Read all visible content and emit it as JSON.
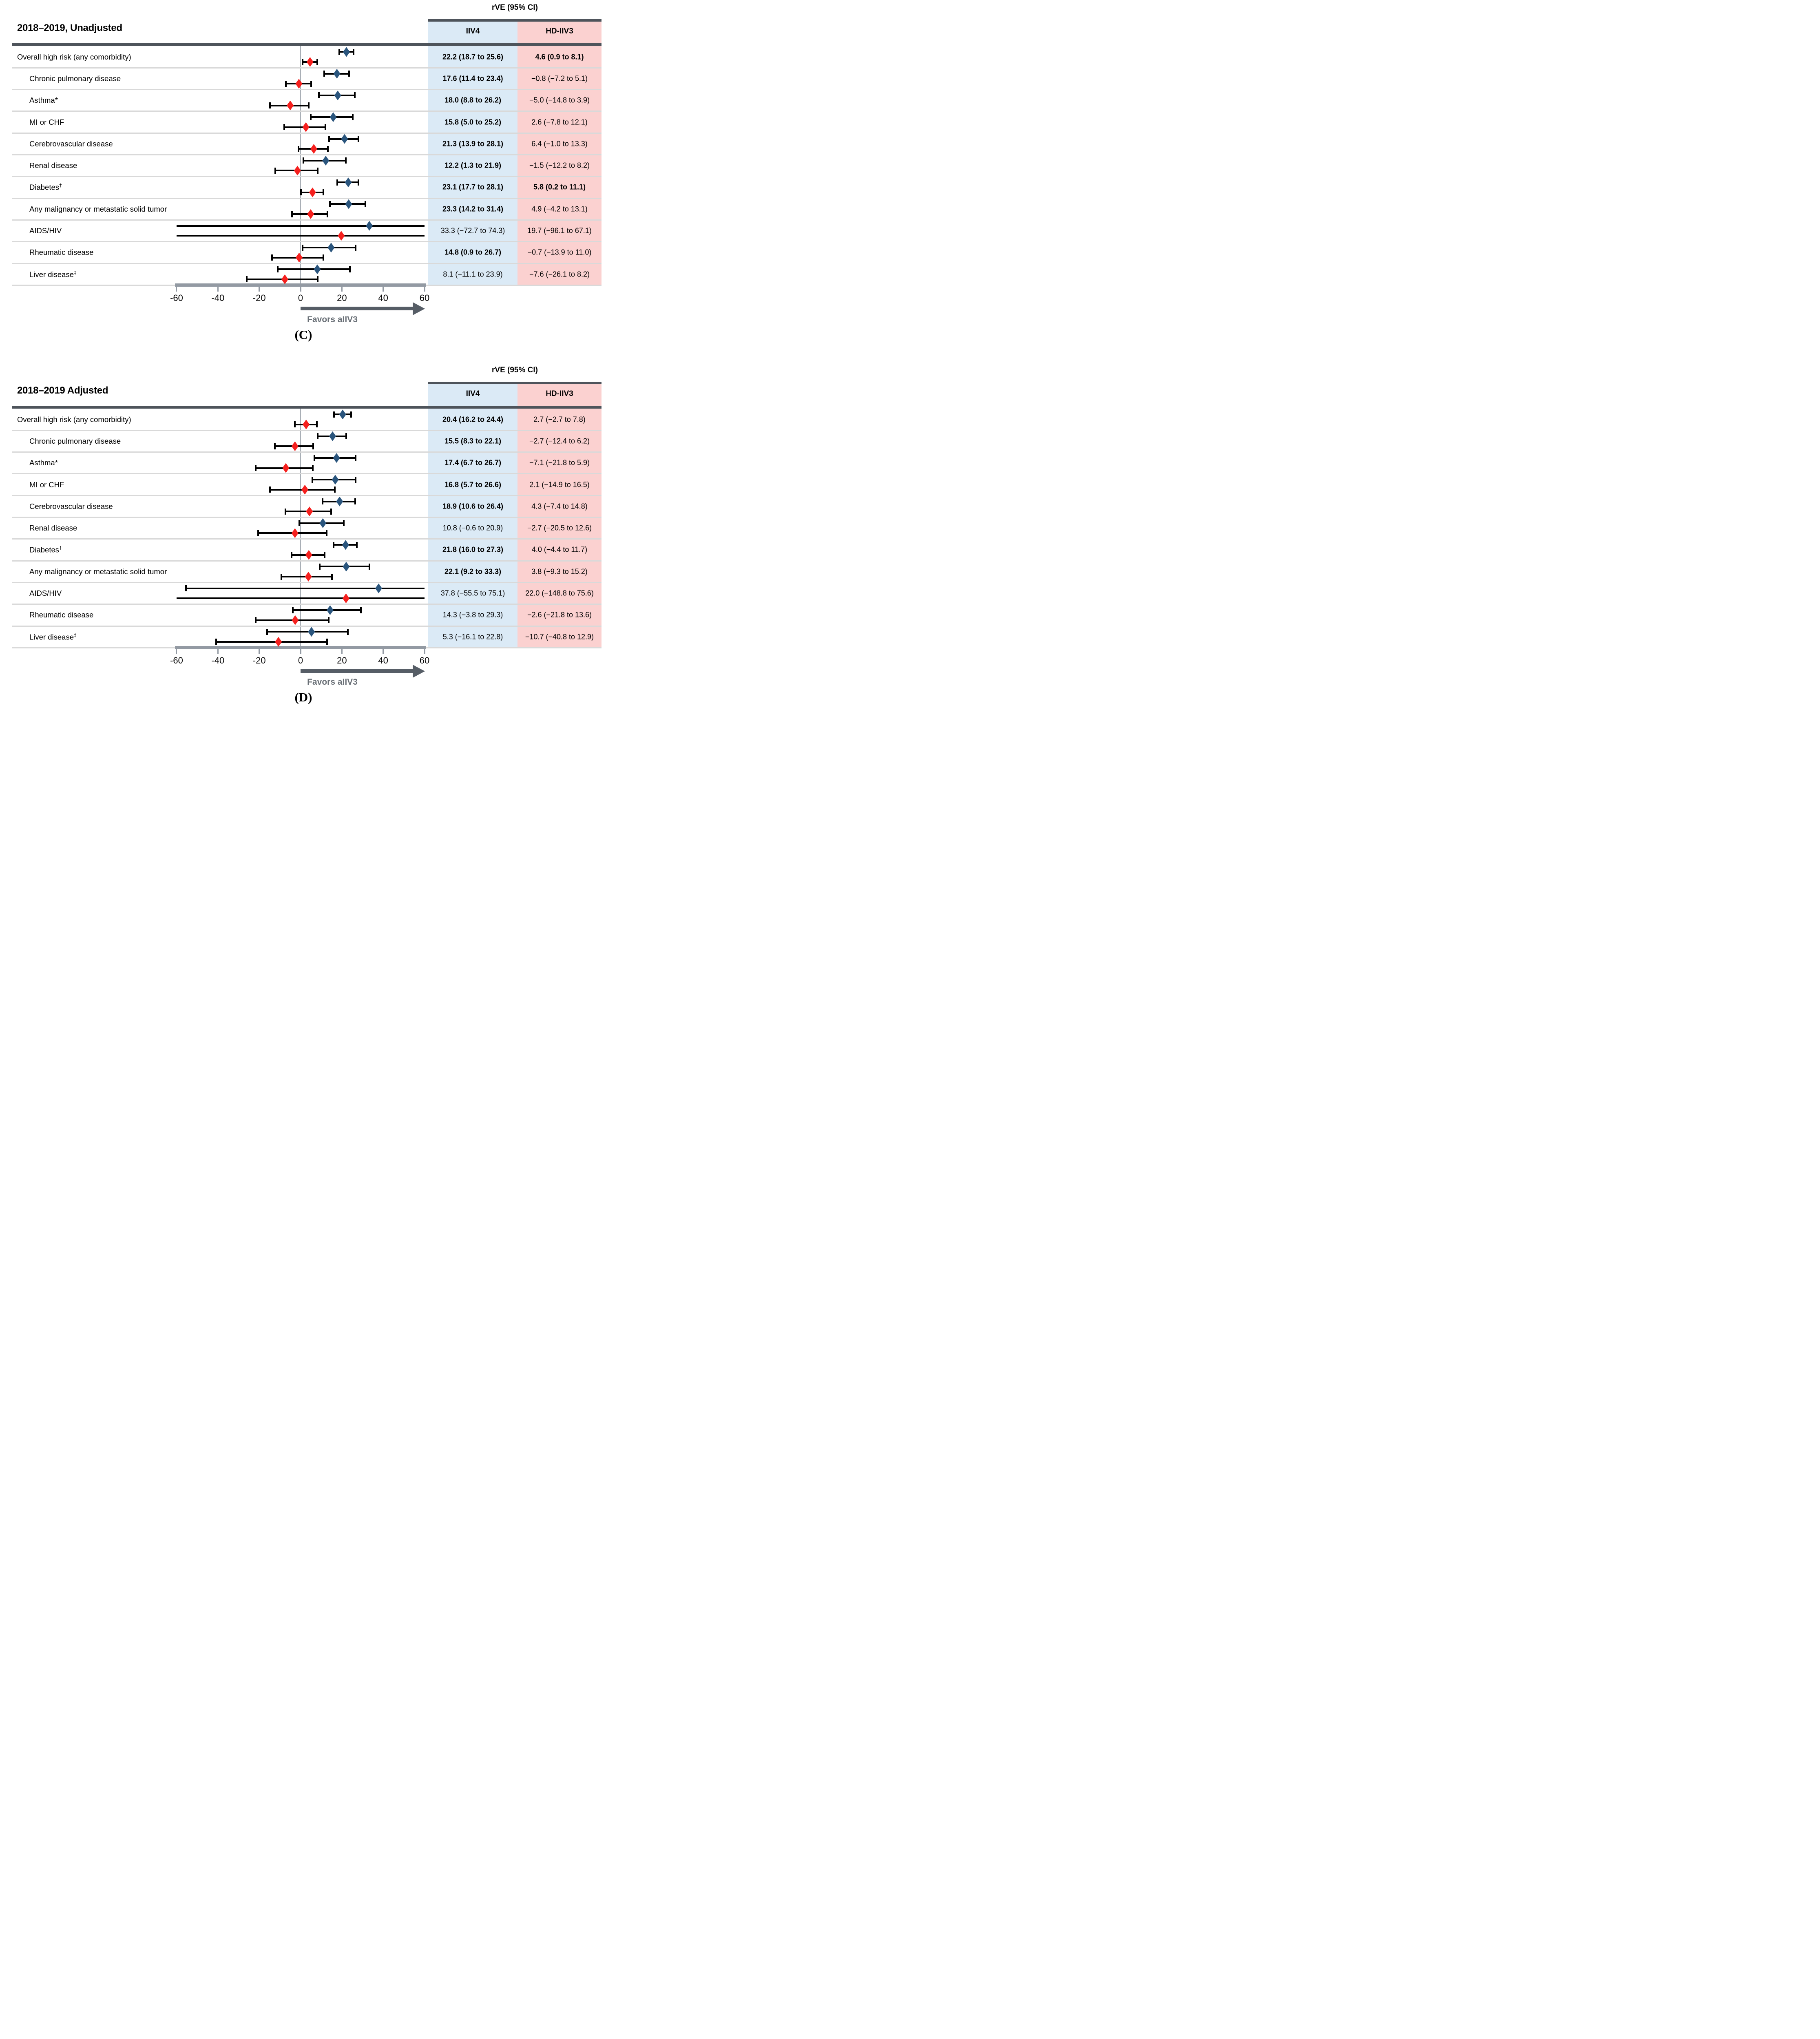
{
  "figure": {
    "header_label": "rVE (95% CI)",
    "col_iiv4": "IIV4",
    "col_hd": "HD-IIV3",
    "favors_label": "Favors aIIV3",
    "axis": {
      "min": -60,
      "max": 60,
      "tick_labels": [
        "-60",
        "-40",
        "-20",
        "0",
        "20",
        "40",
        "60"
      ],
      "tick_values": [
        -60,
        -40,
        -20,
        0,
        20,
        40,
        60
      ]
    },
    "colors": {
      "iiv4_column_bg": "#DBEAF6",
      "hd_column_bg": "#FBD1D0",
      "iiv4_marker": "#2A557D",
      "hd_marker": "#F5201E",
      "header_bar": "#4E545B",
      "axis_bar": "#939AA3",
      "arrow": "#565D66",
      "favors_text": "#6A7077",
      "separator": "#D9D9D9",
      "zero_line": "#A9AFB6",
      "ci_line": "#000000"
    }
  },
  "chart_data": [
    {
      "type": "forest",
      "title": "2018–2019, Unadjusted",
      "caption": "(C)",
      "xlim": [
        -60,
        60
      ],
      "x_ticks": [
        -60,
        -40,
        -20,
        0,
        20,
        40,
        60
      ],
      "series_names": [
        "IIV4",
        "HD-IIV3"
      ],
      "rows": [
        {
          "label": "Overall high risk (any comorbidity)",
          "sup": "",
          "indent": false,
          "iiv4": {
            "est": 22.2,
            "lo": 18.7,
            "hi": 25.6,
            "text": "22.2 (18.7 to 25.6)",
            "bold": true
          },
          "hd": {
            "est": 4.6,
            "lo": 0.9,
            "hi": 8.1,
            "text": "4.6 (0.9 to 8.1)",
            "bold": true
          }
        },
        {
          "label": "Chronic pulmonary disease",
          "sup": "",
          "indent": true,
          "iiv4": {
            "est": 17.6,
            "lo": 11.4,
            "hi": 23.4,
            "text": "17.6 (11.4 to 23.4)",
            "bold": true
          },
          "hd": {
            "est": -0.8,
            "lo": -7.2,
            "hi": 5.1,
            "text": "−0.8 (−7.2 to 5.1)",
            "bold": false
          }
        },
        {
          "label": "Asthma*",
          "sup": "",
          "indent": true,
          "iiv4": {
            "est": 18.0,
            "lo": 8.8,
            "hi": 26.2,
            "text": "18.0 (8.8 to 26.2)",
            "bold": true
          },
          "hd": {
            "est": -5.0,
            "lo": -14.8,
            "hi": 3.9,
            "text": "−5.0 (−14.8 to 3.9)",
            "bold": false
          }
        },
        {
          "label": "MI or CHF",
          "sup": "",
          "indent": true,
          "iiv4": {
            "est": 15.8,
            "lo": 5.0,
            "hi": 25.2,
            "text": "15.8 (5.0 to 25.2)",
            "bold": true
          },
          "hd": {
            "est": 2.6,
            "lo": -7.8,
            "hi": 12.1,
            "text": "2.6 (−7.8 to 12.1)",
            "bold": false
          }
        },
        {
          "label": "Cerebrovascular disease",
          "sup": "",
          "indent": true,
          "iiv4": {
            "est": 21.3,
            "lo": 13.9,
            "hi": 28.1,
            "text": "21.3 (13.9 to 28.1)",
            "bold": true
          },
          "hd": {
            "est": 6.4,
            "lo": -1.0,
            "hi": 13.3,
            "text": "6.4 (−1.0 to 13.3)",
            "bold": false
          }
        },
        {
          "label": "Renal disease",
          "sup": "",
          "indent": true,
          "iiv4": {
            "est": 12.2,
            "lo": 1.3,
            "hi": 21.9,
            "text": "12.2 (1.3 to 21.9)",
            "bold": true
          },
          "hd": {
            "est": -1.5,
            "lo": -12.2,
            "hi": 8.2,
            "text": "−1.5 (−12.2 to 8.2)",
            "bold": false
          }
        },
        {
          "label": "Diabetes",
          "sup": "†",
          "indent": true,
          "iiv4": {
            "est": 23.1,
            "lo": 17.7,
            "hi": 28.1,
            "text": "23.1 (17.7 to 28.1)",
            "bold": true
          },
          "hd": {
            "est": 5.8,
            "lo": 0.2,
            "hi": 11.1,
            "text": "5.8 (0.2 to 11.1)",
            "bold": true
          }
        },
        {
          "label": "Any malignancy or metastatic solid tumor",
          "sup": "",
          "indent": true,
          "iiv4": {
            "est": 23.3,
            "lo": 14.2,
            "hi": 31.4,
            "text": "23.3 (14.2 to 31.4)",
            "bold": true
          },
          "hd": {
            "est": 4.9,
            "lo": -4.2,
            "hi": 13.1,
            "text": "4.9 (−4.2 to 13.1)",
            "bold": false
          }
        },
        {
          "label": "AIDS/HIV",
          "sup": "",
          "indent": true,
          "iiv4": {
            "est": 33.3,
            "lo": -72.7,
            "hi": 74.3,
            "text": "33.3 (−72.7 to 74.3)",
            "bold": false
          },
          "hd": {
            "est": 19.7,
            "lo": -96.1,
            "hi": 67.1,
            "text": "19.7 (−96.1 to 67.1)",
            "bold": false
          }
        },
        {
          "label": "Rheumatic disease",
          "sup": "",
          "indent": true,
          "iiv4": {
            "est": 14.8,
            "lo": 0.9,
            "hi": 26.7,
            "text": "14.8 (0.9 to 26.7)",
            "bold": true
          },
          "hd": {
            "est": -0.7,
            "lo": -13.9,
            "hi": 11.0,
            "text": "−0.7 (−13.9 to 11.0)",
            "bold": false
          }
        },
        {
          "label": "Liver disease",
          "sup": "‡",
          "indent": true,
          "iiv4": {
            "est": 8.1,
            "lo": -11.1,
            "hi": 23.9,
            "text": "8.1 (−11.1 to 23.9)",
            "bold": false
          },
          "hd": {
            "est": -7.6,
            "lo": -26.1,
            "hi": 8.2,
            "text": "−7.6 (−26.1 to 8.2)",
            "bold": false
          }
        }
      ]
    },
    {
      "type": "forest",
      "title": "2018–2019 Adjusted",
      "caption": "(D)",
      "xlim": [
        -60,
        60
      ],
      "x_ticks": [
        -60,
        -40,
        -20,
        0,
        20,
        40,
        60
      ],
      "series_names": [
        "IIV4",
        "HD-IIV3"
      ],
      "rows": [
        {
          "label": "Overall high risk (any comorbidity)",
          "sup": "",
          "indent": false,
          "iiv4": {
            "est": 20.4,
            "lo": 16.2,
            "hi": 24.4,
            "text": "20.4 (16.2 to 24.4)",
            "bold": true
          },
          "hd": {
            "est": 2.7,
            "lo": -2.7,
            "hi": 7.8,
            "text": "2.7 (−2.7 to 7.8)",
            "bold": false
          }
        },
        {
          "label": "Chronic pulmonary disease",
          "sup": "",
          "indent": true,
          "iiv4": {
            "est": 15.5,
            "lo": 8.3,
            "hi": 22.1,
            "text": "15.5 (8.3 to 22.1)",
            "bold": true
          },
          "hd": {
            "est": -2.7,
            "lo": -12.4,
            "hi": 6.2,
            "text": "−2.7 (−12.4 to 6.2)",
            "bold": false
          }
        },
        {
          "label": "Asthma*",
          "sup": "",
          "indent": true,
          "iiv4": {
            "est": 17.4,
            "lo": 6.7,
            "hi": 26.7,
            "text": "17.4 (6.7 to 26.7)",
            "bold": true
          },
          "hd": {
            "est": -7.1,
            "lo": -21.8,
            "hi": 5.9,
            "text": "−7.1 (−21.8 to 5.9)",
            "bold": false
          }
        },
        {
          "label": "MI or CHF",
          "sup": "",
          "indent": true,
          "iiv4": {
            "est": 16.8,
            "lo": 5.7,
            "hi": 26.6,
            "text": "16.8 (5.7 to 26.6)",
            "bold": true
          },
          "hd": {
            "est": 2.1,
            "lo": -14.9,
            "hi": 16.5,
            "text": "2.1 (−14.9 to 16.5)",
            "bold": false
          }
        },
        {
          "label": "Cerebrovascular disease",
          "sup": "",
          "indent": true,
          "iiv4": {
            "est": 18.9,
            "lo": 10.6,
            "hi": 26.4,
            "text": "18.9 (10.6 to 26.4)",
            "bold": true
          },
          "hd": {
            "est": 4.3,
            "lo": -7.4,
            "hi": 14.8,
            "text": "4.3 (−7.4 to 14.8)",
            "bold": false
          }
        },
        {
          "label": "Renal disease",
          "sup": "",
          "indent": true,
          "iiv4": {
            "est": 10.8,
            "lo": -0.6,
            "hi": 20.9,
            "text": "10.8 (−0.6 to 20.9)",
            "bold": false
          },
          "hd": {
            "est": -2.7,
            "lo": -20.5,
            "hi": 12.6,
            "text": "−2.7 (−20.5 to 12.6)",
            "bold": false
          }
        },
        {
          "label": "Diabetes",
          "sup": "†",
          "indent": true,
          "iiv4": {
            "est": 21.8,
            "lo": 16.0,
            "hi": 27.3,
            "text": "21.8 (16.0 to 27.3)",
            "bold": true
          },
          "hd": {
            "est": 4.0,
            "lo": -4.4,
            "hi": 11.7,
            "text": "4.0 (−4.4 to 11.7)",
            "bold": false
          }
        },
        {
          "label": "Any malignancy or metastatic solid tumor",
          "sup": "",
          "indent": true,
          "iiv4": {
            "est": 22.1,
            "lo": 9.2,
            "hi": 33.3,
            "text": "22.1 (9.2 to 33.3)",
            "bold": true
          },
          "hd": {
            "est": 3.8,
            "lo": -9.3,
            "hi": 15.2,
            "text": "3.8 (−9.3 to 15.2)",
            "bold": false
          }
        },
        {
          "label": "AIDS/HIV",
          "sup": "",
          "indent": true,
          "iiv4": {
            "est": 37.8,
            "lo": -55.5,
            "hi": 75.1,
            "text": "37.8 (−55.5 to 75.1)",
            "bold": false
          },
          "hd": {
            "est": 22.0,
            "lo": -148.8,
            "hi": 75.6,
            "text": "22.0 (−148.8 to 75.6)",
            "bold": false
          }
        },
        {
          "label": "Rheumatic disease",
          "sup": "",
          "indent": true,
          "iiv4": {
            "est": 14.3,
            "lo": -3.8,
            "hi": 29.3,
            "text": "14.3 (−3.8 to 29.3)",
            "bold": false
          },
          "hd": {
            "est": -2.6,
            "lo": -21.8,
            "hi": 13.6,
            "text": "−2.6 (−21.8 to 13.6)",
            "bold": false
          }
        },
        {
          "label": "Liver disease",
          "sup": "‡",
          "indent": true,
          "iiv4": {
            "est": 5.3,
            "lo": -16.1,
            "hi": 22.8,
            "text": "5.3 (−16.1 to 22.8)",
            "bold": false
          },
          "hd": {
            "est": -10.7,
            "lo": -40.8,
            "hi": 12.9,
            "text": "−10.7 (−40.8 to 12.9)",
            "bold": false
          }
        }
      ]
    }
  ]
}
